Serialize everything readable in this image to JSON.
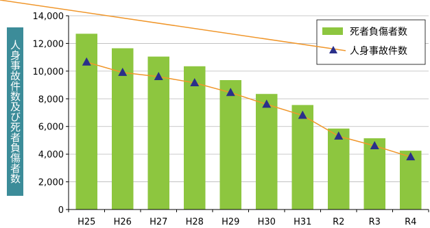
{
  "chart_data": {
    "type": "bar+line",
    "categories": [
      "H25",
      "H26",
      "H27",
      "H28",
      "H29",
      "H30",
      "H31",
      "R2",
      "R3",
      "R4"
    ],
    "series": [
      {
        "name": "死者負傷者数",
        "type": "bar",
        "color": "#8dc63f",
        "values": [
          12700,
          11650,
          11050,
          10350,
          9350,
          8350,
          7550,
          5850,
          5150,
          4250
        ]
      },
      {
        "name": "人身事故件数",
        "type": "line",
        "color": "#f0962a",
        "marker_color": "#2a2f8a",
        "values": [
          10650,
          9900,
          9600,
          9150,
          8450,
          7600,
          6800,
          5300,
          4600,
          3800
        ]
      }
    ],
    "ylabel": "人身事故件数及び死者負傷者数",
    "ylim": [
      0,
      14000
    ],
    "yticks": [
      "0",
      "2,000",
      "4,000",
      "6,000",
      "8,000",
      "10,000",
      "12,000",
      "14,000"
    ],
    "grid": true,
    "legend_position": "top-right"
  }
}
